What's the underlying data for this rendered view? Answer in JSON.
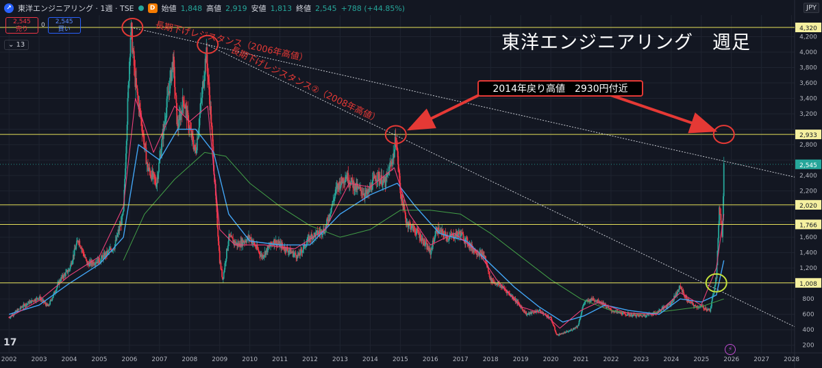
{
  "header": {
    "symbol_icon": "tse-logo-icon",
    "symbol": "東洋エンジニアリング · 1週 · TSE",
    "interval_badge": "D",
    "open_label": "始値",
    "open": "1,848",
    "high_label": "高値",
    "high": "2,919",
    "low_label": "安値",
    "low": "1,813",
    "close_label": "終値",
    "close": "2,545",
    "change": "+788 (+44.85%)"
  },
  "trade": {
    "sell_price": "2,545",
    "sell_label": "売り",
    "spread": "0",
    "buy_price": "2,545",
    "buy_label": "買い"
  },
  "indicator_count": "13",
  "currency": "JPY",
  "colors": {
    "bg": "#131722",
    "up": "#26a69a",
    "down": "#f23645",
    "ma_short": "#ec407a",
    "ma_mid": "#42a5f5",
    "ma_long": "#43a047",
    "hline": "#e8e35a",
    "annotation": "#e53935"
  },
  "chart_data": {
    "type": "line",
    "title": "東洋エンジニアリング　週足",
    "annotation": "2014年戻り高値　2930円付近",
    "resistance1_label": "長期下げレジスタンス（2006年高値）",
    "resistance2_label": "長期下げレジスタンス②（2008年高値）",
    "x_ticks": [
      "2002",
      "2003",
      "2004",
      "2005",
      "2006",
      "2007",
      "2008",
      "2009",
      "2010",
      "2011",
      "2012",
      "2013",
      "2014",
      "2015",
      "2016",
      "2017",
      "2018",
      "2019",
      "2020",
      "2021",
      "2022",
      "2023",
      "2024",
      "2025",
      "2026",
      "2027",
      "2028"
    ],
    "y_ticks": [
      200,
      400,
      600,
      800,
      1000,
      1200,
      1400,
      1600,
      1800,
      2000,
      2200,
      2400,
      2600,
      2800,
      3000,
      3200,
      3400,
      3600,
      3800,
      4000,
      4200
    ],
    "ylim": [
      100,
      4480
    ],
    "xlim": [
      2001.7,
      2028.1
    ],
    "horizontal_levels": [
      {
        "value": 4320,
        "label": "4,320"
      },
      {
        "value": 2933,
        "label": "2,933"
      },
      {
        "value": 2020,
        "label": "2,020"
      },
      {
        "value": 1766,
        "label": "1,766"
      },
      {
        "value": 1008,
        "label": "1,008"
      }
    ],
    "last_price": {
      "value": 2545,
      "label": "2,545"
    },
    "price_series": [
      [
        2002.0,
        560
      ],
      [
        2002.5,
        720
      ],
      [
        2003.0,
        820
      ],
      [
        2003.3,
        700
      ],
      [
        2003.7,
        1050
      ],
      [
        2004.0,
        1180
      ],
      [
        2004.3,
        1580
      ],
      [
        2004.6,
        1250
      ],
      [
        2005.0,
        1300
      ],
      [
        2005.5,
        1480
      ],
      [
        2005.8,
        1900
      ],
      [
        2006.0,
        3900
      ],
      [
        2006.05,
        4320
      ],
      [
        2006.2,
        3600
      ],
      [
        2006.4,
        3100
      ],
      [
        2006.6,
        2500
      ],
      [
        2006.9,
        2300
      ],
      [
        2007.2,
        3200
      ],
      [
        2007.45,
        3900
      ],
      [
        2007.6,
        3000
      ],
      [
        2007.8,
        3400
      ],
      [
        2008.0,
        3000
      ],
      [
        2008.2,
        2700
      ],
      [
        2008.4,
        3400
      ],
      [
        2008.55,
        4000
      ],
      [
        2008.7,
        3200
      ],
      [
        2008.85,
        2200
      ],
      [
        2009.0,
        1300
      ],
      [
        2009.1,
        1050
      ],
      [
        2009.3,
        1600
      ],
      [
        2009.6,
        1500
      ],
      [
        2010.0,
        1600
      ],
      [
        2010.4,
        1350
      ],
      [
        2010.8,
        1550
      ],
      [
        2011.2,
        1450
      ],
      [
        2011.6,
        1350
      ],
      [
        2012.0,
        1600
      ],
      [
        2012.5,
        1700
      ],
      [
        2012.9,
        2250
      ],
      [
        2013.2,
        2400
      ],
      [
        2013.5,
        2250
      ],
      [
        2013.9,
        2150
      ],
      [
        2014.2,
        2400
      ],
      [
        2014.5,
        2300
      ],
      [
        2014.8,
        2700
      ],
      [
        2014.85,
        2930
      ],
      [
        2015.0,
        2200
      ],
      [
        2015.2,
        1800
      ],
      [
        2015.6,
        1650
      ],
      [
        2016.0,
        1400
      ],
      [
        2016.2,
        1700
      ],
      [
        2016.6,
        1600
      ],
      [
        2017.0,
        1650
      ],
      [
        2017.4,
        1450
      ],
      [
        2017.8,
        1350
      ],
      [
        2018.0,
        1050
      ],
      [
        2018.4,
        950
      ],
      [
        2018.8,
        800
      ],
      [
        2019.2,
        600
      ],
      [
        2019.6,
        650
      ],
      [
        2020.0,
        550
      ],
      [
        2020.2,
        330
      ],
      [
        2020.6,
        380
      ],
      [
        2020.9,
        450
      ],
      [
        2021.1,
        750
      ],
      [
        2021.4,
        800
      ],
      [
        2021.7,
        750
      ],
      [
        2022.0,
        650
      ],
      [
        2022.5,
        600
      ],
      [
        2023.0,
        580
      ],
      [
        2023.5,
        620
      ],
      [
        2024.0,
        750
      ],
      [
        2024.3,
        960
      ],
      [
        2024.5,
        800
      ],
      [
        2024.8,
        700
      ],
      [
        2025.0,
        700
      ],
      [
        2025.3,
        650
      ],
      [
        2025.5,
        1100
      ],
      [
        2025.6,
        2000
      ],
      [
        2025.7,
        1600
      ],
      [
        2025.75,
        2545
      ]
    ],
    "ma_short": [
      [
        2002.0,
        560
      ],
      [
        2003.0,
        780
      ],
      [
        2004.0,
        1100
      ],
      [
        2005.0,
        1350
      ],
      [
        2005.8,
        2000
      ],
      [
        2006.2,
        3400
      ],
      [
        2006.8,
        2700
      ],
      [
        2007.5,
        3300
      ],
      [
        2008.0,
        3100
      ],
      [
        2008.6,
        3300
      ],
      [
        2009.0,
        1700
      ],
      [
        2009.5,
        1500
      ],
      [
        2010.5,
        1500
      ],
      [
        2011.5,
        1450
      ],
      [
        2012.5,
        1700
      ],
      [
        2013.3,
        2300
      ],
      [
        2014.0,
        2250
      ],
      [
        2014.8,
        2500
      ],
      [
        2015.3,
        1900
      ],
      [
        2016.0,
        1500
      ],
      [
        2016.8,
        1650
      ],
      [
        2017.6,
        1400
      ],
      [
        2018.2,
        1050
      ],
      [
        2019.0,
        700
      ],
      [
        2019.8,
        600
      ],
      [
        2020.3,
        420
      ],
      [
        2021.0,
        650
      ],
      [
        2021.6,
        760
      ],
      [
        2022.5,
        620
      ],
      [
        2023.5,
        600
      ],
      [
        2024.3,
        880
      ],
      [
        2025.0,
        720
      ],
      [
        2025.5,
        1200
      ],
      [
        2025.75,
        1900
      ]
    ],
    "ma_mid": [
      [
        2002.0,
        600
      ],
      [
        2003.0,
        720
      ],
      [
        2004.0,
        1000
      ],
      [
        2005.0,
        1250
      ],
      [
        2005.8,
        1600
      ],
      [
        2006.3,
        2800
      ],
      [
        2007.0,
        2600
      ],
      [
        2007.6,
        3000
      ],
      [
        2008.2,
        3000
      ],
      [
        2008.8,
        2700
      ],
      [
        2009.3,
        1900
      ],
      [
        2010.0,
        1550
      ],
      [
        2011.0,
        1500
      ],
      [
        2012.0,
        1500
      ],
      [
        2013.0,
        1900
      ],
      [
        2014.0,
        2150
      ],
      [
        2014.9,
        2300
      ],
      [
        2015.5,
        2000
      ],
      [
        2016.3,
        1650
      ],
      [
        2017.2,
        1550
      ],
      [
        2018.0,
        1250
      ],
      [
        2018.8,
        950
      ],
      [
        2019.6,
        700
      ],
      [
        2020.4,
        500
      ],
      [
        2021.1,
        580
      ],
      [
        2021.8,
        720
      ],
      [
        2022.6,
        650
      ],
      [
        2023.6,
        600
      ],
      [
        2024.3,
        800
      ],
      [
        2025.0,
        760
      ],
      [
        2025.5,
        850
      ],
      [
        2025.75,
        1300
      ]
    ],
    "ma_long": [
      [
        2005.8,
        1300
      ],
      [
        2006.5,
        1900
      ],
      [
        2007.5,
        2350
      ],
      [
        2008.5,
        2700
      ],
      [
        2009.2,
        2650
      ],
      [
        2010.0,
        2300
      ],
      [
        2011.0,
        2000
      ],
      [
        2012.0,
        1750
      ],
      [
        2013.0,
        1600
      ],
      [
        2014.0,
        1700
      ],
      [
        2015.0,
        1950
      ],
      [
        2016.0,
        1950
      ],
      [
        2017.0,
        1900
      ],
      [
        2018.0,
        1650
      ],
      [
        2019.0,
        1350
      ],
      [
        2020.0,
        1050
      ],
      [
        2021.0,
        800
      ],
      [
        2022.0,
        650
      ],
      [
        2023.0,
        600
      ],
      [
        2024.0,
        650
      ],
      [
        2025.0,
        700
      ],
      [
        2025.75,
        800
      ]
    ],
    "trendline1": [
      [
        2006.05,
        4320
      ],
      [
        2028.1,
        2380
      ]
    ],
    "trendline2": [
      [
        2008.55,
        4100
      ],
      [
        2028.1,
        440
      ]
    ],
    "circles": [
      {
        "x": 2006.1,
        "y": 4320,
        "color": "#e53935"
      },
      {
        "x": 2008.6,
        "y": 4100,
        "color": "#e53935"
      },
      {
        "x": 2014.85,
        "y": 2930,
        "color": "#e53935"
      },
      {
        "x": 2025.75,
        "y": 2933,
        "color": "#e53935"
      },
      {
        "x": 2025.5,
        "y": 1008,
        "color": "#c6e33b"
      }
    ],
    "arrows": [
      {
        "from": [
          2017.6,
          3440
        ],
        "to": [
          2015.3,
          3000
        ]
      },
      {
        "from": [
          2022.0,
          3440
        ],
        "to": [
          2025.45,
          2980
        ]
      }
    ]
  }
}
